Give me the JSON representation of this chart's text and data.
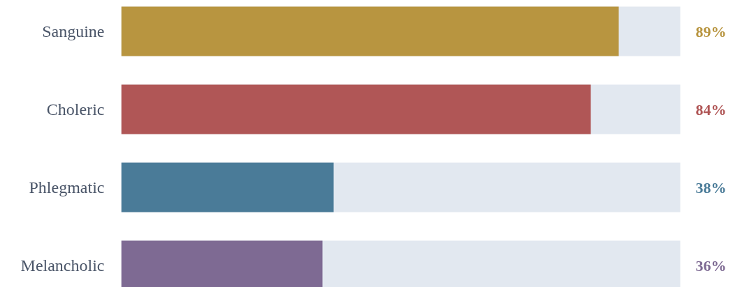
{
  "chart_data": {
    "type": "bar",
    "orientation": "horizontal",
    "categories": [
      "Sanguine",
      "Choleric",
      "Phlegmatic",
      "Melancholic"
    ],
    "values": [
      89,
      84,
      38,
      36
    ],
    "colors": [
      "#b89540",
      "#b05656",
      "#4a7b98",
      "#7e6a93"
    ],
    "xlim": [
      0,
      100
    ],
    "tick_labels": "y",
    "grid": false,
    "value_labels": [
      "89%",
      "84%",
      "38%",
      "36%"
    ]
  }
}
